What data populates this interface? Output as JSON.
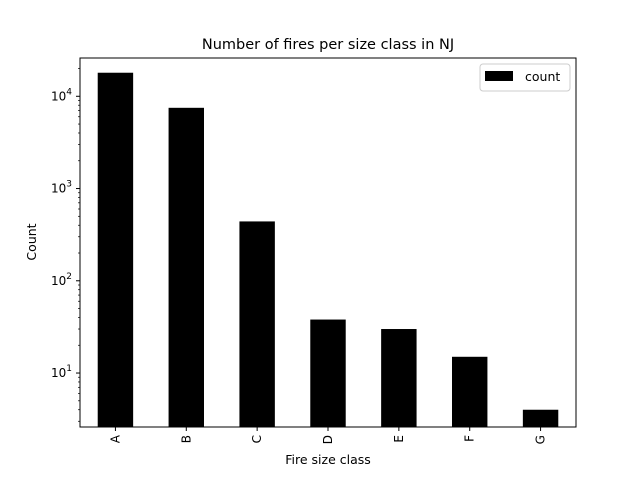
{
  "chart_data": {
    "type": "bar",
    "title": "Number of fires per size class in NJ",
    "xlabel": "Fire size class",
    "ylabel": "Count",
    "categories": [
      "A",
      "B",
      "C",
      "D",
      "E",
      "F",
      "G"
    ],
    "series": [
      {
        "name": "count",
        "values": [
          18000,
          7500,
          440,
          38,
          30,
          15,
          4
        ],
        "color": "#000000"
      }
    ],
    "yscale": "log",
    "ylim": [
      2.6,
      26000
    ],
    "yticks": [
      {
        "value": 10,
        "mantissa": "10",
        "exponent": "1"
      },
      {
        "value": 100,
        "mantissa": "10",
        "exponent": "2"
      },
      {
        "value": 1000,
        "mantissa": "10",
        "exponent": "3"
      },
      {
        "value": 10000,
        "mantissa": "10",
        "exponent": "4"
      }
    ],
    "grid": false,
    "legend": {
      "entries": [
        "count"
      ],
      "placement": "top-right"
    }
  }
}
